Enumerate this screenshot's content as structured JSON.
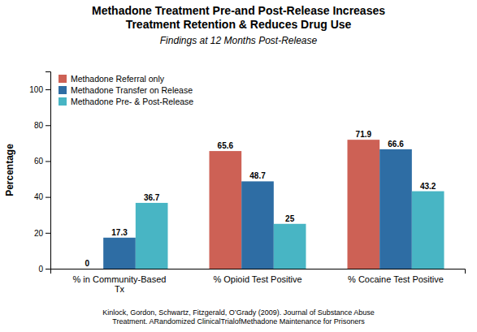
{
  "chart_data": {
    "type": "bar",
    "title": "Methadone Treatment Pre-and Post-Release Increases\nTreatment Retention & Reduces Drug Use",
    "subtitle": "Findings at 12 Months Post-Release",
    "categories": [
      "% in Community-Based\nTx",
      "% Opioid Test Positive",
      "% Cocaine Test Positive"
    ],
    "series": [
      {
        "name": "Methadone Referral only",
        "color": "#cd6155",
        "values": [
          0,
          65.6,
          71.9
        ]
      },
      {
        "name": "Methadone Transfer on Release",
        "color": "#2e6da4",
        "values": [
          17.3,
          48.7,
          66.6
        ]
      },
      {
        "name": "Methadone Pre- & Post-Release",
        "color": "#48b5c4",
        "values": [
          36.7,
          25,
          43.2
        ]
      }
    ],
    "ylabel": "Percentage",
    "ylim": [
      0,
      110
    ],
    "yticks": [
      0,
      20,
      40,
      60,
      80,
      100
    ],
    "annotations": [
      "Kinlock, Gordon, Schwartz, Fitzgerald, O’Grady (2009). Journal of Substance Abuse\nTreatment. ARandomized ClinicalTrialofMethadone Maintenance for Prisoners"
    ],
    "data_labels": true,
    "legend": "upper left",
    "grid": false
  }
}
